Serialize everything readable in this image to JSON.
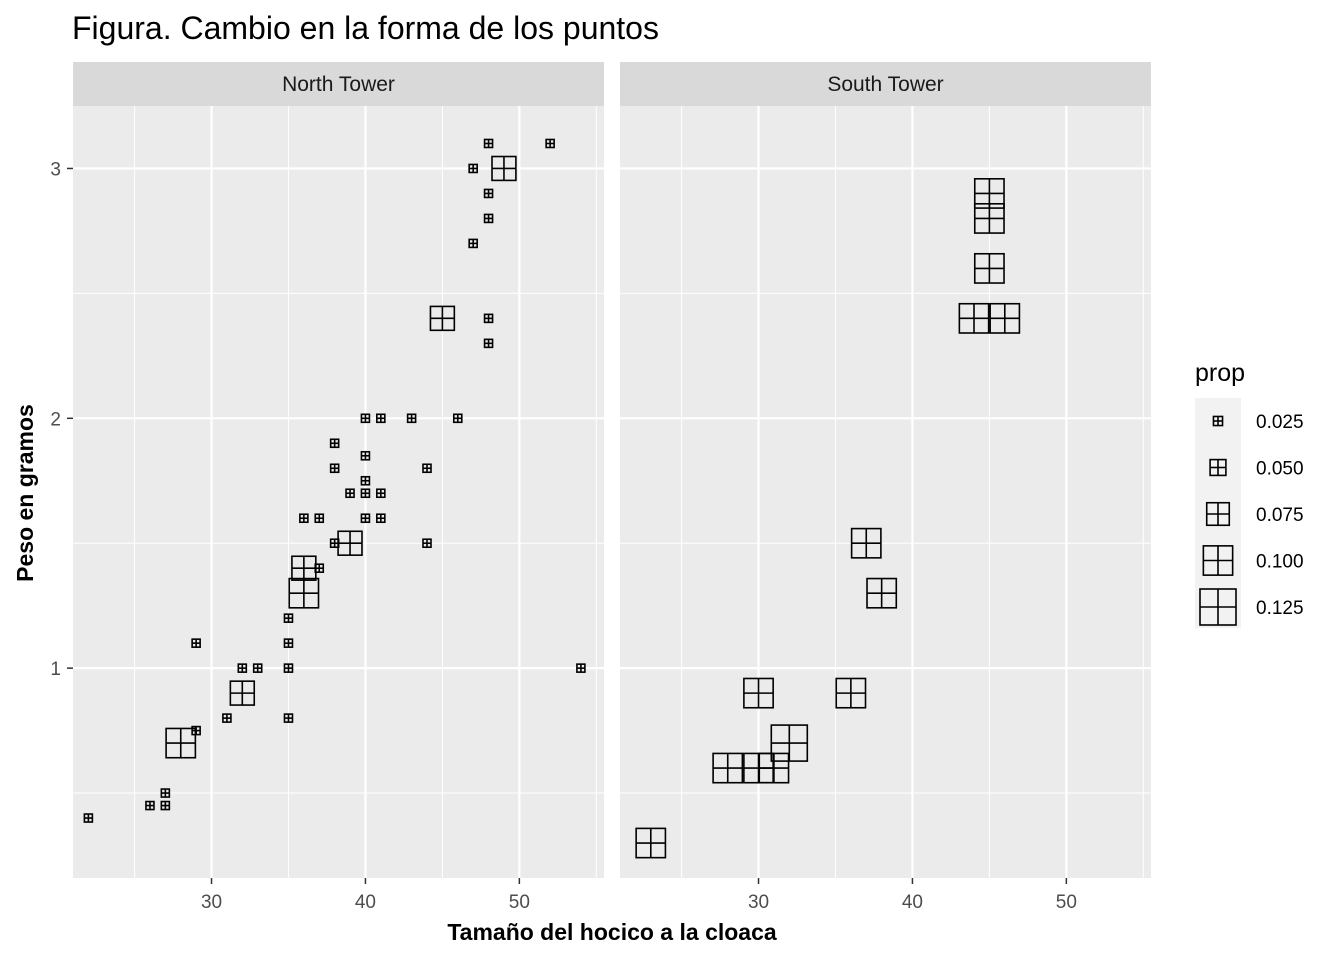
{
  "chart_data": {
    "type": "scatter",
    "title": "Figura. Cambio en la forma de los puntos",
    "xlabel": "Tamaño del hocico a la cloaca",
    "ylabel": "Peso en gramos",
    "xlim": [
      21,
      55.5
    ],
    "ylim": [
      0.16,
      3.25
    ],
    "x_ticks": [
      30,
      40,
      50
    ],
    "x_tick_labels": [
      "30",
      "40",
      "50"
    ],
    "y_ticks": [
      1,
      2,
      3
    ],
    "y_tick_labels": [
      "1",
      "2",
      "3"
    ],
    "grid": true,
    "marker": "square-plus",
    "size_variable": "prop",
    "legend": {
      "title": "prop",
      "placement": "right",
      "entries": [
        {
          "label": "0.025",
          "value": 0.025
        },
        {
          "label": "0.050",
          "value": 0.05
        },
        {
          "label": "0.075",
          "value": 0.075
        },
        {
          "label": "0.100",
          "value": 0.1
        },
        {
          "label": "0.125",
          "value": 0.125
        }
      ]
    },
    "panels": [
      {
        "name": "North Tower",
        "points": [
          {
            "x": 48,
            "y": 3.1,
            "prop": 0.021
          },
          {
            "x": 52,
            "y": 3.1,
            "prop": 0.021
          },
          {
            "x": 47,
            "y": 3.0,
            "prop": 0.021
          },
          {
            "x": 49,
            "y": 3.0,
            "prop": 0.08
          },
          {
            "x": 48,
            "y": 2.9,
            "prop": 0.021
          },
          {
            "x": 48,
            "y": 2.8,
            "prop": 0.021
          },
          {
            "x": 47,
            "y": 2.7,
            "prop": 0.021
          },
          {
            "x": 45,
            "y": 2.4,
            "prop": 0.08
          },
          {
            "x": 48,
            "y": 2.4,
            "prop": 0.021
          },
          {
            "x": 48,
            "y": 2.3,
            "prop": 0.021
          },
          {
            "x": 40,
            "y": 2.0,
            "prop": 0.021
          },
          {
            "x": 41,
            "y": 2.0,
            "prop": 0.021
          },
          {
            "x": 43,
            "y": 2.0,
            "prop": 0.021
          },
          {
            "x": 46,
            "y": 2.0,
            "prop": 0.021
          },
          {
            "x": 38,
            "y": 1.9,
            "prop": 0.021
          },
          {
            "x": 40,
            "y": 1.85,
            "prop": 0.021
          },
          {
            "x": 38,
            "y": 1.8,
            "prop": 0.021
          },
          {
            "x": 44,
            "y": 1.8,
            "prop": 0.021
          },
          {
            "x": 40,
            "y": 1.75,
            "prop": 0.021
          },
          {
            "x": 39,
            "y": 1.7,
            "prop": 0.021
          },
          {
            "x": 40,
            "y": 1.7,
            "prop": 0.021
          },
          {
            "x": 41,
            "y": 1.7,
            "prop": 0.021
          },
          {
            "x": 36,
            "y": 1.6,
            "prop": 0.021
          },
          {
            "x": 37,
            "y": 1.6,
            "prop": 0.021
          },
          {
            "x": 40,
            "y": 1.6,
            "prop": 0.021
          },
          {
            "x": 41,
            "y": 1.6,
            "prop": 0.021
          },
          {
            "x": 38,
            "y": 1.5,
            "prop": 0.021
          },
          {
            "x": 39,
            "y": 1.5,
            "prop": 0.08
          },
          {
            "x": 44,
            "y": 1.5,
            "prop": 0.021
          },
          {
            "x": 36,
            "y": 1.4,
            "prop": 0.08
          },
          {
            "x": 37,
            "y": 1.4,
            "prop": 0.021
          },
          {
            "x": 36,
            "y": 1.3,
            "prop": 0.1
          },
          {
            "x": 35,
            "y": 1.2,
            "prop": 0.021
          },
          {
            "x": 29,
            "y": 1.1,
            "prop": 0.021
          },
          {
            "x": 35,
            "y": 1.1,
            "prop": 0.021
          },
          {
            "x": 32,
            "y": 1.0,
            "prop": 0.021
          },
          {
            "x": 33,
            "y": 1.0,
            "prop": 0.021
          },
          {
            "x": 35,
            "y": 1.0,
            "prop": 0.021
          },
          {
            "x": 54,
            "y": 1.0,
            "prop": 0.021
          },
          {
            "x": 32,
            "y": 0.9,
            "prop": 0.08
          },
          {
            "x": 31,
            "y": 0.8,
            "prop": 0.021
          },
          {
            "x": 35,
            "y": 0.8,
            "prop": 0.021
          },
          {
            "x": 29,
            "y": 0.75,
            "prop": 0.021
          },
          {
            "x": 28,
            "y": 0.7,
            "prop": 0.1
          },
          {
            "x": 27,
            "y": 0.5,
            "prop": 0.021
          },
          {
            "x": 26,
            "y": 0.45,
            "prop": 0.021
          },
          {
            "x": 27,
            "y": 0.45,
            "prop": 0.021
          },
          {
            "x": 22,
            "y": 0.4,
            "prop": 0.021
          }
        ]
      },
      {
        "name": "South Tower",
        "points": [
          {
            "x": 45,
            "y": 2.9,
            "prop": 0.1
          },
          {
            "x": 45,
            "y": 2.8,
            "prop": 0.1
          },
          {
            "x": 45,
            "y": 2.6,
            "prop": 0.1
          },
          {
            "x": 44,
            "y": 2.4,
            "prop": 0.1
          },
          {
            "x": 46,
            "y": 2.4,
            "prop": 0.1
          },
          {
            "x": 37,
            "y": 1.5,
            "prop": 0.1
          },
          {
            "x": 38,
            "y": 1.3,
            "prop": 0.1
          },
          {
            "x": 30,
            "y": 0.9,
            "prop": 0.1
          },
          {
            "x": 36,
            "y": 0.9,
            "prop": 0.1
          },
          {
            "x": 32,
            "y": 0.7,
            "prop": 0.125
          },
          {
            "x": 28,
            "y": 0.6,
            "prop": 0.1
          },
          {
            "x": 30,
            "y": 0.6,
            "prop": 0.1
          },
          {
            "x": 31,
            "y": 0.6,
            "prop": 0.1
          },
          {
            "x": 23,
            "y": 0.3,
            "prop": 0.1
          }
        ]
      }
    ]
  }
}
